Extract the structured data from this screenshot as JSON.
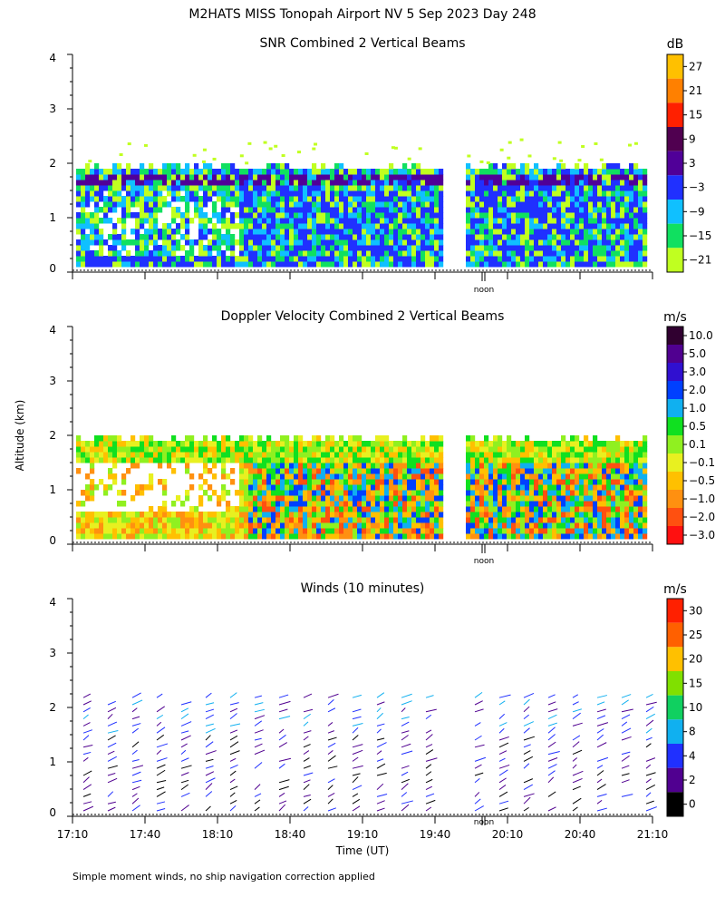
{
  "page_title": "M2HATS MISS Tonopah Airport NV   5 Sep 2023 Day 248",
  "ylabel": "Altitude (km)",
  "footnote": "Simple moment winds, no ship navigation correction applied",
  "chart_data": [
    {
      "type": "heatmap",
      "title": "SNR Combined 2 Vertical Beams",
      "ylim": [
        0,
        4
      ],
      "yticks": [
        "0",
        "1",
        "2",
        "3",
        "4"
      ],
      "noon_label": "noon",
      "colorbar": {
        "unit": "dB",
        "labels": [
          "27",
          "21",
          "15",
          "9",
          "3",
          "−3",
          "−9",
          "−15",
          "−21"
        ],
        "colors": [
          "#ffc000",
          "#ff8000",
          "#ff2000",
          "#500050",
          "#500098",
          "#2030ff",
          "#10c0ff",
          "#10e060",
          "#c0ff20"
        ]
      }
    },
    {
      "type": "heatmap",
      "title": "Doppler Velocity Combined 2 Vertical Beams",
      "ylim": [
        0,
        4
      ],
      "yticks": [
        "0",
        "1",
        "2",
        "3",
        "4"
      ],
      "noon_label": "noon",
      "colorbar": {
        "unit": "m/s",
        "labels": [
          "10.0",
          "5.0",
          "3.0",
          "2.0",
          "1.0",
          "0.5",
          "0.1",
          "−0.1",
          "−0.5",
          "−1.0",
          "−2.0",
          "−3.0"
        ],
        "colors": [
          "#300030",
          "#500090",
          "#3010d0",
          "#0040ff",
          "#10b0f0",
          "#10e020",
          "#90f020",
          "#e8f020",
          "#ffc000",
          "#ff9010",
          "#ff5010",
          "#ff1010"
        ]
      }
    },
    {
      "type": "scatter",
      "title": "Winds (10 minutes)",
      "ylim": [
        0,
        4
      ],
      "yticks": [
        "0",
        "1",
        "2",
        "3",
        "4"
      ],
      "xlabel": "Time (UT)",
      "xticks": [
        "17:10",
        "17:40",
        "18:10",
        "18:40",
        "19:10",
        "19:40",
        "20:10",
        "20:40",
        "21:10"
      ],
      "noon_label": "noon",
      "colorbar": {
        "unit": "m/s",
        "labels": [
          "30",
          "25",
          "20",
          "15",
          "10",
          "8",
          "4",
          "2",
          "0"
        ],
        "colors": [
          "#ff2000",
          "#ff6000",
          "#ffc000",
          "#80e000",
          "#10d060",
          "#10b0f0",
          "#2030ff",
          "#500090",
          "#000000"
        ]
      }
    }
  ]
}
